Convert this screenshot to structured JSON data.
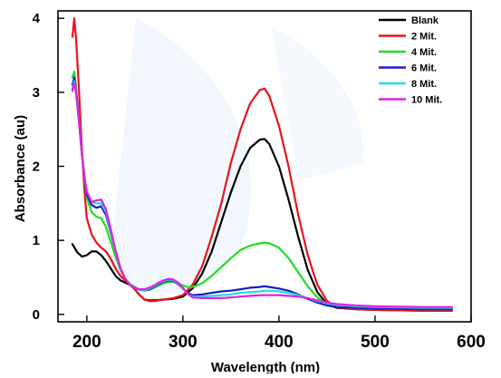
{
  "chart_data": {
    "type": "line",
    "title": "",
    "xlabel": "Wavelength (nm)",
    "ylabel": "Absorbance (au)",
    "xlim": [
      170,
      600
    ],
    "ylim": [
      -0.1,
      4.1
    ],
    "x_ticks": [
      200,
      300,
      400,
      500,
      600
    ],
    "y_ticks": [
      0,
      1,
      2,
      3,
      4
    ],
    "grid": false,
    "legend_position": "top-right",
    "series": [
      {
        "name": "Blank",
        "color": "#000000",
        "points": [
          [
            185,
            0.95
          ],
          [
            190,
            0.84
          ],
          [
            195,
            0.78
          ],
          [
            200,
            0.8
          ],
          [
            205,
            0.85
          ],
          [
            210,
            0.85
          ],
          [
            215,
            0.8
          ],
          [
            220,
            0.72
          ],
          [
            225,
            0.62
          ],
          [
            230,
            0.52
          ],
          [
            235,
            0.46
          ],
          [
            240,
            0.43
          ],
          [
            245,
            0.4
          ],
          [
            250,
            0.34
          ],
          [
            255,
            0.26
          ],
          [
            260,
            0.2
          ],
          [
            265,
            0.19
          ],
          [
            270,
            0.19
          ],
          [
            280,
            0.2
          ],
          [
            290,
            0.21
          ],
          [
            300,
            0.24
          ],
          [
            310,
            0.35
          ],
          [
            320,
            0.55
          ],
          [
            330,
            0.85
          ],
          [
            340,
            1.25
          ],
          [
            350,
            1.65
          ],
          [
            360,
            2.0
          ],
          [
            370,
            2.25
          ],
          [
            380,
            2.36
          ],
          [
            385,
            2.37
          ],
          [
            390,
            2.3
          ],
          [
            400,
            2.0
          ],
          [
            410,
            1.55
          ],
          [
            420,
            1.05
          ],
          [
            430,
            0.6
          ],
          [
            440,
            0.3
          ],
          [
            450,
            0.14
          ],
          [
            460,
            0.09
          ],
          [
            480,
            0.07
          ],
          [
            500,
            0.06
          ],
          [
            550,
            0.05
          ],
          [
            580,
            0.05
          ]
        ]
      },
      {
        "name": "2 Mit.",
        "color": "#e8131b",
        "points": [
          [
            185,
            3.75
          ],
          [
            187,
            4.0
          ],
          [
            189,
            3.7
          ],
          [
            192,
            3.0
          ],
          [
            195,
            2.2
          ],
          [
            198,
            1.6
          ],
          [
            200,
            1.3
          ],
          [
            205,
            1.08
          ],
          [
            210,
            0.97
          ],
          [
            215,
            0.9
          ],
          [
            220,
            0.85
          ],
          [
            225,
            0.75
          ],
          [
            230,
            0.62
          ],
          [
            235,
            0.52
          ],
          [
            240,
            0.46
          ],
          [
            245,
            0.41
          ],
          [
            250,
            0.34
          ],
          [
            255,
            0.26
          ],
          [
            260,
            0.2
          ],
          [
            265,
            0.18
          ],
          [
            270,
            0.18
          ],
          [
            280,
            0.2
          ],
          [
            290,
            0.22
          ],
          [
            300,
            0.26
          ],
          [
            310,
            0.4
          ],
          [
            320,
            0.65
          ],
          [
            330,
            1.05
          ],
          [
            340,
            1.5
          ],
          [
            350,
            2.05
          ],
          [
            360,
            2.5
          ],
          [
            370,
            2.85
          ],
          [
            380,
            3.03
          ],
          [
            385,
            3.05
          ],
          [
            390,
            2.95
          ],
          [
            400,
            2.55
          ],
          [
            410,
            2.0
          ],
          [
            420,
            1.35
          ],
          [
            430,
            0.8
          ],
          [
            440,
            0.4
          ],
          [
            450,
            0.18
          ],
          [
            460,
            0.1
          ],
          [
            480,
            0.07
          ],
          [
            500,
            0.06
          ],
          [
            550,
            0.05
          ],
          [
            580,
            0.05
          ]
        ]
      },
      {
        "name": "4 Mit.",
        "color": "#22dd22",
        "points": [
          [
            185,
            3.2
          ],
          [
            187,
            3.28
          ],
          [
            189,
            3.05
          ],
          [
            192,
            2.6
          ],
          [
            195,
            2.15
          ],
          [
            198,
            1.8
          ],
          [
            200,
            1.58
          ],
          [
            205,
            1.38
          ],
          [
            210,
            1.32
          ],
          [
            215,
            1.3
          ],
          [
            220,
            1.18
          ],
          [
            225,
            0.98
          ],
          [
            230,
            0.78
          ],
          [
            235,
            0.6
          ],
          [
            240,
            0.48
          ],
          [
            245,
            0.41
          ],
          [
            250,
            0.37
          ],
          [
            255,
            0.33
          ],
          [
            260,
            0.32
          ],
          [
            265,
            0.33
          ],
          [
            270,
            0.36
          ],
          [
            275,
            0.39
          ],
          [
            280,
            0.42
          ],
          [
            285,
            0.44
          ],
          [
            290,
            0.44
          ],
          [
            295,
            0.42
          ],
          [
            300,
            0.39
          ],
          [
            305,
            0.37
          ],
          [
            310,
            0.37
          ],
          [
            320,
            0.42
          ],
          [
            330,
            0.52
          ],
          [
            340,
            0.64
          ],
          [
            350,
            0.76
          ],
          [
            360,
            0.87
          ],
          [
            370,
            0.93
          ],
          [
            380,
            0.96
          ],
          [
            385,
            0.97
          ],
          [
            390,
            0.96
          ],
          [
            400,
            0.9
          ],
          [
            410,
            0.76
          ],
          [
            420,
            0.57
          ],
          [
            430,
            0.38
          ],
          [
            440,
            0.23
          ],
          [
            450,
            0.14
          ],
          [
            460,
            0.1
          ],
          [
            480,
            0.09
          ],
          [
            500,
            0.08
          ],
          [
            550,
            0.07
          ],
          [
            580,
            0.07
          ]
        ]
      },
      {
        "name": "6 Mit.",
        "color": "#1a1acc",
        "points": [
          [
            185,
            3.1
          ],
          [
            187,
            3.2
          ],
          [
            189,
            3.02
          ],
          [
            192,
            2.6
          ],
          [
            195,
            2.15
          ],
          [
            198,
            1.8
          ],
          [
            200,
            1.62
          ],
          [
            205,
            1.48
          ],
          [
            210,
            1.44
          ],
          [
            215,
            1.46
          ],
          [
            220,
            1.34
          ],
          [
            225,
            1.1
          ],
          [
            230,
            0.85
          ],
          [
            235,
            0.62
          ],
          [
            240,
            0.48
          ],
          [
            245,
            0.4
          ],
          [
            250,
            0.36
          ],
          [
            255,
            0.33
          ],
          [
            260,
            0.33
          ],
          [
            265,
            0.34
          ],
          [
            270,
            0.37
          ],
          [
            275,
            0.41
          ],
          [
            280,
            0.44
          ],
          [
            285,
            0.46
          ],
          [
            290,
            0.45
          ],
          [
            295,
            0.41
          ],
          [
            300,
            0.35
          ],
          [
            305,
            0.29
          ],
          [
            310,
            0.26
          ],
          [
            320,
            0.27
          ],
          [
            330,
            0.29
          ],
          [
            340,
            0.31
          ],
          [
            350,
            0.32
          ],
          [
            360,
            0.34
          ],
          [
            370,
            0.36
          ],
          [
            380,
            0.37
          ],
          [
            385,
            0.38
          ],
          [
            390,
            0.37
          ],
          [
            400,
            0.35
          ],
          [
            410,
            0.32
          ],
          [
            420,
            0.27
          ],
          [
            430,
            0.21
          ],
          [
            440,
            0.16
          ],
          [
            450,
            0.12
          ],
          [
            460,
            0.1
          ],
          [
            480,
            0.09
          ],
          [
            500,
            0.08
          ],
          [
            550,
            0.07
          ],
          [
            580,
            0.07
          ]
        ]
      },
      {
        "name": "8 Mit.",
        "color": "#22dddd",
        "points": [
          [
            185,
            3.05
          ],
          [
            187,
            3.15
          ],
          [
            189,
            3.0
          ],
          [
            192,
            2.6
          ],
          [
            195,
            2.15
          ],
          [
            198,
            1.82
          ],
          [
            200,
            1.66
          ],
          [
            205,
            1.52
          ],
          [
            210,
            1.5
          ],
          [
            215,
            1.5
          ],
          [
            220,
            1.38
          ],
          [
            225,
            1.12
          ],
          [
            230,
            0.85
          ],
          [
            235,
            0.62
          ],
          [
            240,
            0.48
          ],
          [
            245,
            0.4
          ],
          [
            250,
            0.36
          ],
          [
            255,
            0.33
          ],
          [
            260,
            0.33
          ],
          [
            265,
            0.35
          ],
          [
            270,
            0.38
          ],
          [
            275,
            0.42
          ],
          [
            280,
            0.45
          ],
          [
            285,
            0.47
          ],
          [
            290,
            0.46
          ],
          [
            295,
            0.42
          ],
          [
            300,
            0.35
          ],
          [
            305,
            0.28
          ],
          [
            310,
            0.24
          ],
          [
            320,
            0.24
          ],
          [
            330,
            0.25
          ],
          [
            340,
            0.26
          ],
          [
            350,
            0.27
          ],
          [
            360,
            0.29
          ],
          [
            370,
            0.3
          ],
          [
            380,
            0.31
          ],
          [
            385,
            0.32
          ],
          [
            390,
            0.32
          ],
          [
            400,
            0.31
          ],
          [
            410,
            0.29
          ],
          [
            420,
            0.26
          ],
          [
            430,
            0.22
          ],
          [
            440,
            0.18
          ],
          [
            450,
            0.15
          ],
          [
            460,
            0.13
          ],
          [
            480,
            0.11
          ],
          [
            500,
            0.1
          ],
          [
            550,
            0.09
          ],
          [
            580,
            0.09
          ]
        ]
      },
      {
        "name": "10 Mit.",
        "color": "#e020e0",
        "points": [
          [
            185,
            3.02
          ],
          [
            187,
            3.12
          ],
          [
            189,
            2.98
          ],
          [
            192,
            2.58
          ],
          [
            195,
            2.15
          ],
          [
            198,
            1.82
          ],
          [
            200,
            1.66
          ],
          [
            205,
            1.52
          ],
          [
            210,
            1.54
          ],
          [
            215,
            1.55
          ],
          [
            220,
            1.42
          ],
          [
            225,
            1.15
          ],
          [
            230,
            0.86
          ],
          [
            235,
            0.63
          ],
          [
            240,
            0.48
          ],
          [
            245,
            0.4
          ],
          [
            250,
            0.36
          ],
          [
            255,
            0.34
          ],
          [
            260,
            0.34
          ],
          [
            265,
            0.36
          ],
          [
            270,
            0.39
          ],
          [
            275,
            0.43
          ],
          [
            280,
            0.46
          ],
          [
            285,
            0.48
          ],
          [
            290,
            0.47
          ],
          [
            295,
            0.43
          ],
          [
            300,
            0.36
          ],
          [
            305,
            0.28
          ],
          [
            310,
            0.23
          ],
          [
            320,
            0.22
          ],
          [
            330,
            0.22
          ],
          [
            340,
            0.22
          ],
          [
            350,
            0.23
          ],
          [
            360,
            0.24
          ],
          [
            370,
            0.25
          ],
          [
            380,
            0.26
          ],
          [
            385,
            0.26
          ],
          [
            390,
            0.26
          ],
          [
            400,
            0.26
          ],
          [
            410,
            0.25
          ],
          [
            420,
            0.24
          ],
          [
            430,
            0.22
          ],
          [
            440,
            0.19
          ],
          [
            450,
            0.16
          ],
          [
            460,
            0.14
          ],
          [
            480,
            0.12
          ],
          [
            500,
            0.11
          ],
          [
            550,
            0.1
          ],
          [
            580,
            0.1
          ]
        ]
      }
    ]
  }
}
